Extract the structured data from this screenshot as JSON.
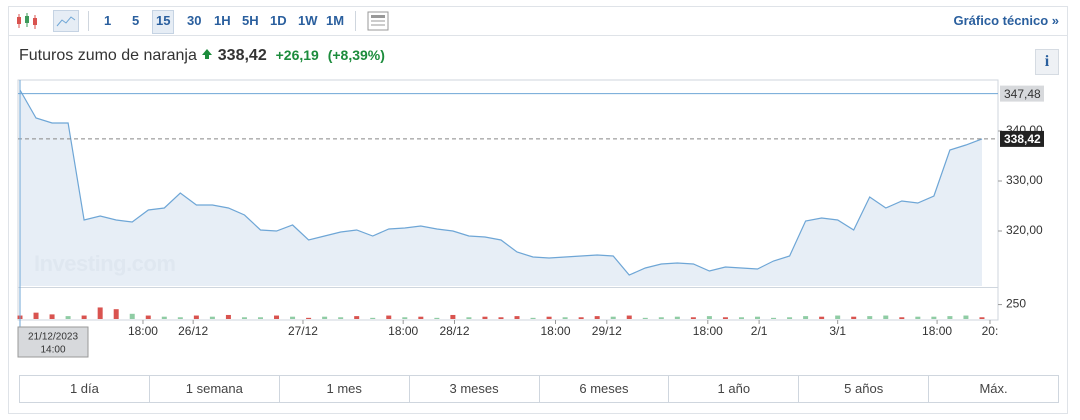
{
  "toolbar": {
    "intervals": [
      "1",
      "5",
      "15",
      "30",
      "1H",
      "5H",
      "1D",
      "1W",
      "1M"
    ],
    "active": "15",
    "link": "Gráfico técnico »"
  },
  "header": {
    "name": "Futuros zumo de naranja",
    "price": "338,42",
    "change": "+26,19",
    "change_pct": "(+8,39%)"
  },
  "chart_data": {
    "type": "area",
    "values": [
      348.2,
      342.6,
      341.6,
      341.6,
      322.2,
      323,
      322.2,
      321.8,
      324.2,
      324.6,
      327.6,
      325.2,
      325.2,
      324.6,
      323.2,
      320.2,
      320,
      321.2,
      318.2,
      319,
      319.8,
      320.2,
      319,
      320.4,
      320.6,
      321,
      320.4,
      320,
      319,
      318.8,
      318.2,
      315.8,
      314.8,
      314.6,
      314.8,
      315,
      315.2,
      315,
      311.2,
      312.6,
      313.4,
      313.6,
      313.4,
      312,
      312.8,
      312.6,
      312.4,
      314,
      315,
      322,
      322.6,
      322.2,
      320.2,
      326.8,
      324.6,
      326,
      325.6,
      327,
      336.2,
      337.2,
      338.42
    ],
    "color": "#6ea6d6",
    "xlim": [
      0,
      61
    ],
    "xticks": [
      {
        "value": 7.67,
        "label": "18:00"
      },
      {
        "value": 10.8,
        "label": "26/12"
      },
      {
        "value": 17.65,
        "label": "27/12"
      },
      {
        "value": 23.9,
        "label": "18:00"
      },
      {
        "value": 27.1,
        "label": "28/12"
      },
      {
        "value": 33.4,
        "label": "18:00"
      },
      {
        "value": 36.6,
        "label": "29/12"
      },
      {
        "value": 42.9,
        "label": "18:00"
      },
      {
        "value": 46.1,
        "label": "2/1"
      },
      {
        "value": 51,
        "label": "3/1"
      },
      {
        "value": 57.2,
        "label": "18:00"
      },
      {
        "value": 60.5,
        "label": "20:"
      }
    ],
    "ylim": [
      309,
      350
    ],
    "yticks": [
      {
        "value": 320,
        "label": "320,00"
      },
      {
        "value": 330,
        "label": "330,00"
      },
      {
        "value": 340,
        "label": "340,00"
      }
    ],
    "markers": [
      {
        "value": 347.48,
        "label": "347,48"
      },
      {
        "value": 338.42,
        "label": "338,42"
      }
    ],
    "watermark": "Investing.com",
    "cursor": {
      "date": "21/12/2023",
      "time": "14:00"
    },
    "volume": {
      "values": [
        60,
        110,
        80,
        50,
        60,
        200,
        170,
        90,
        60,
        40,
        30,
        60,
        40,
        70,
        30,
        30,
        60,
        40,
        20,
        40,
        30,
        50,
        20,
        60,
        30,
        40,
        20,
        70,
        30,
        40,
        30,
        50,
        20,
        40,
        30,
        30,
        50,
        40,
        60,
        20,
        30,
        40,
        30,
        50,
        30,
        30,
        40,
        20,
        30,
        50,
        40,
        60,
        40,
        50,
        60,
        30,
        40,
        40,
        50,
        60,
        30
      ],
      "colors": [
        "#d9534f",
        "#d9534f",
        "#d9534f",
        "#8fcca4",
        "#d9534f",
        "#d9534f",
        "#d9534f",
        "#8fcca4",
        "#d9534f",
        "#8fcca4",
        "#8fcca4",
        "#d9534f",
        "#8fcca4",
        "#d9534f",
        "#8fcca4",
        "#8fcca4",
        "#d9534f",
        "#8fcca4",
        "#d9534f",
        "#8fcca4",
        "#8fcca4",
        "#d9534f",
        "#8fcca4",
        "#d9534f",
        "#8fcca4",
        "#d9534f",
        "#8fcca4",
        "#d9534f",
        "#8fcca4",
        "#d9534f",
        "#d9534f",
        "#d9534f",
        "#8fcca4",
        "#d9534f",
        "#8fcca4",
        "#d9534f",
        "#d9534f",
        "#8fcca4",
        "#d9534f",
        "#8fcca4",
        "#8fcca4",
        "#8fcca4",
        "#d9534f",
        "#8fcca4",
        "#d9534f",
        "#8fcca4",
        "#8fcca4",
        "#8fcca4",
        "#8fcca4",
        "#8fcca4",
        "#d9534f",
        "#8fcca4",
        "#d9534f",
        "#8fcca4",
        "#8fcca4",
        "#d9534f",
        "#8fcca4",
        "#8fcca4",
        "#8fcca4",
        "#8fcca4",
        "#d9534f"
      ],
      "ylim": [
        0,
        520
      ],
      "yticks": [
        250
      ]
    }
  },
  "ranges": [
    "1 día",
    "1 semana",
    "1 mes",
    "3 meses",
    "6 meses",
    "1 año",
    "5 años",
    "Máx."
  ]
}
